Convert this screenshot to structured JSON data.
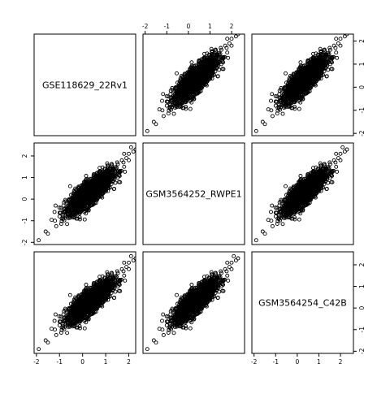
{
  "chart_data": {
    "type": "scatter",
    "layout": "pairs-matrix",
    "variables": [
      "GSE118629_22Rv1",
      "GSM3564252_RWPE1",
      "GSM3564254_C42B"
    ],
    "axis_ranges": {
      "GSE118629_22Rv1": [
        -2.1,
        2.3
      ],
      "GSM3564252_RWPE1": [
        -2.1,
        2.6
      ],
      "GSM3564254_C42B": [
        -2.1,
        2.6
      ]
    },
    "ticks": {
      "GSE118629_22Rv1": [
        -2,
        -1,
        0,
        1,
        2
      ],
      "GSM3564252_RWPE1": [
        -2,
        -1,
        0,
        1,
        2
      ],
      "GSM3564254_C42B": [
        -2,
        -1,
        0,
        1,
        2
      ]
    },
    "tick_labels": {
      "GSE118629_22Rv1": [
        "-2",
        "-1",
        "0",
        "1",
        "2"
      ],
      "GSM3564252_RWPE1": [
        "-2",
        "-1",
        "0",
        "1",
        "2"
      ],
      "GSM3564254_C42B": [
        "-2",
        "-1",
        "0",
        "1",
        "2"
      ]
    },
    "cloud": {
      "center": [
        0.35,
        0.35
      ],
      "spread": 0.45,
      "correlation": 0.8
    },
    "outliers": [
      [
        -1.9,
        -1.9
      ],
      [
        -1.6,
        -1.5
      ],
      [
        -1.5,
        -1.6
      ],
      [
        -1.2,
        -1.0
      ],
      [
        -1.0,
        -0.8
      ],
      [
        -0.9,
        -0.9
      ],
      [
        -0.8,
        -0.6
      ],
      [
        -0.6,
        -0.7
      ],
      [
        -0.5,
        -0.3
      ],
      [
        1.5,
        1.7
      ],
      [
        1.7,
        1.8
      ],
      [
        1.8,
        2.1
      ],
      [
        1.9,
        1.9
      ],
      [
        2.0,
        2.1
      ],
      [
        2.1,
        2.4
      ],
      [
        2.2,
        2.2
      ],
      [
        2.3,
        2.3
      ],
      [
        1.6,
        1.3
      ],
      [
        1.8,
        1.5
      ],
      [
        2.0,
        1.8
      ]
    ],
    "grid": false,
    "legend": "none"
  }
}
